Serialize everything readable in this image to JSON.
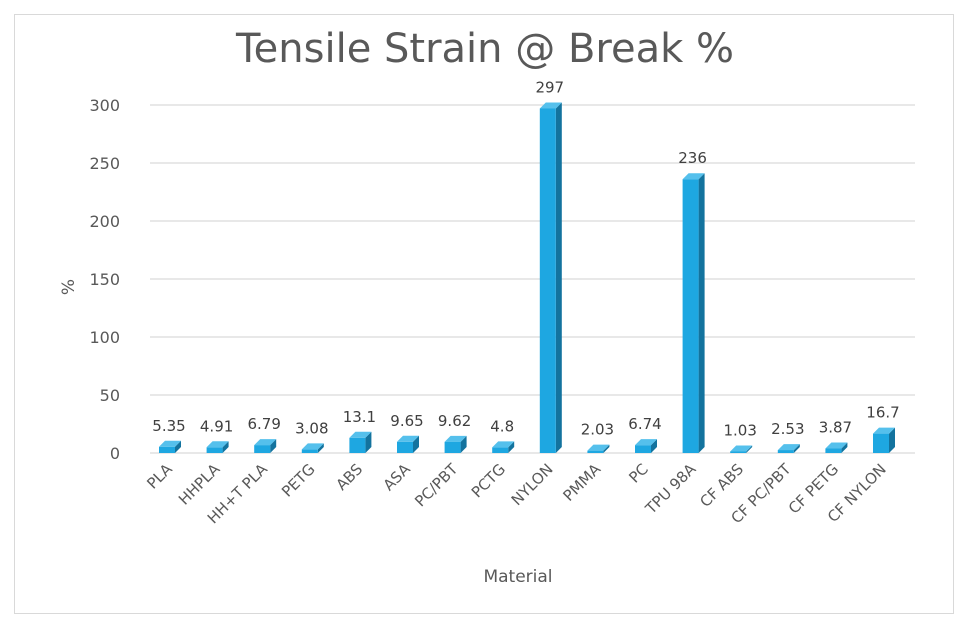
{
  "chart_data": {
    "type": "bar",
    "title": "Tensile Strain @ Break %",
    "xlabel": "Material",
    "ylabel": "%",
    "ylim": [
      0,
      300
    ],
    "yticks": [
      0,
      50,
      100,
      150,
      200,
      250,
      300
    ],
    "grid": true,
    "legend": "none",
    "bar_color": "#1ea7e1",
    "categories": [
      "PLA",
      "HHPLA",
      "HH+T PLA",
      "PETG",
      "ABS",
      "ASA",
      "PC/PBT",
      "PCTG",
      "NYLON",
      "PMMA",
      "PC",
      "TPU 98A",
      "CF ABS",
      "CF PC/PBT",
      "CF PETG",
      "CF NYLON"
    ],
    "values": [
      5.35,
      4.91,
      6.79,
      3.08,
      13.1,
      9.65,
      9.62,
      4.8,
      297,
      2.03,
      6.74,
      236,
      1.03,
      2.53,
      3.87,
      16.7
    ],
    "data_labels": [
      "5.35",
      "4.91",
      "6.79",
      "3.08",
      "13.1",
      "9.65",
      "9.62",
      "4.8",
      "297",
      "2.03",
      "6.74",
      "236",
      "1.03",
      "2.53",
      "3.87",
      "16.7"
    ]
  }
}
